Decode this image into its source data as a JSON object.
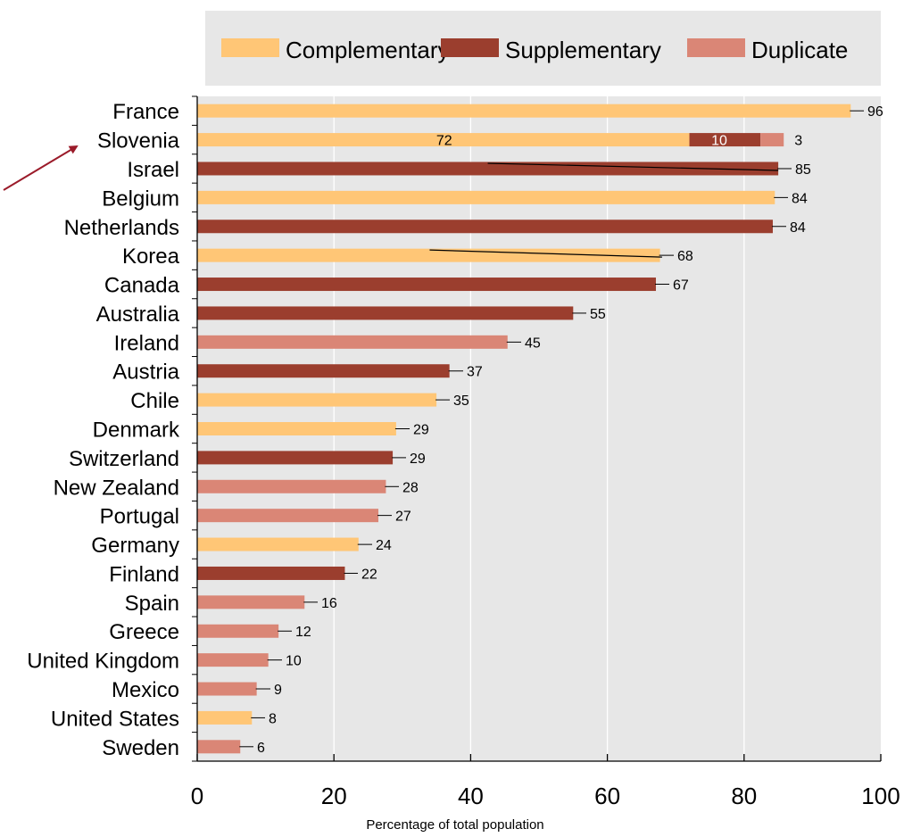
{
  "chart_data": {
    "type": "bar",
    "orientation": "horizontal",
    "stacked": true,
    "xlabel": "Percentage of total population",
    "xlim": [
      0,
      100
    ],
    "xticks": [
      "0",
      "20",
      "40",
      "60",
      "80",
      "100"
    ],
    "grid": true,
    "legend_position": "top",
    "legend": [
      {
        "name": "Complementary",
        "color": "#FFC676"
      },
      {
        "name": "Supplementary",
        "color": "#9B3E2E"
      },
      {
        "name": "Duplicate",
        "color": "#DA8676"
      }
    ],
    "categories": [
      "France",
      "Slovenia",
      "Israel",
      "Belgium",
      "Netherlands",
      "Korea",
      "Canada",
      "Australia",
      "Ireland",
      "Austria",
      "Chile",
      "Denmark",
      "Switzerland",
      "New Zealand",
      "Portugal",
      "Germany",
      "Finland",
      "Spain",
      "Greece",
      "United Kingdom",
      "Mexico",
      "United States",
      "Sweden"
    ],
    "series": [
      {
        "name": "Complementary",
        "values": [
          95.6,
          72,
          0,
          84.5,
          0,
          67.7,
          0,
          0,
          0,
          0,
          35,
          29.1,
          0,
          0,
          0,
          23.6,
          0,
          0,
          0,
          0,
          0,
          8,
          0
        ]
      },
      {
        "name": "Supplementary",
        "values": [
          0,
          10.4,
          85,
          0,
          84.2,
          0,
          67.1,
          55,
          0,
          36.9,
          0,
          0,
          28.6,
          0,
          0,
          0,
          21.6,
          0,
          0,
          0,
          0,
          0,
          0
        ]
      },
      {
        "name": "Duplicate",
        "values": [
          0,
          3.4,
          0,
          0,
          0,
          0,
          0,
          0,
          45.4,
          0,
          0,
          0,
          0,
          27.6,
          26.5,
          0,
          0,
          15.7,
          11.9,
          10.4,
          8.7,
          0,
          6.3
        ]
      }
    ],
    "labels": [
      "96",
      "",
      "85",
      "84",
      "84",
      "68",
      "67",
      "55",
      "45",
      "37",
      "35",
      "29",
      "29",
      "28",
      "27",
      "24",
      "22",
      "16",
      "12",
      "10",
      "9",
      "8",
      "6"
    ],
    "slovenia_segment_labels": [
      "72",
      "10",
      "3"
    ]
  }
}
